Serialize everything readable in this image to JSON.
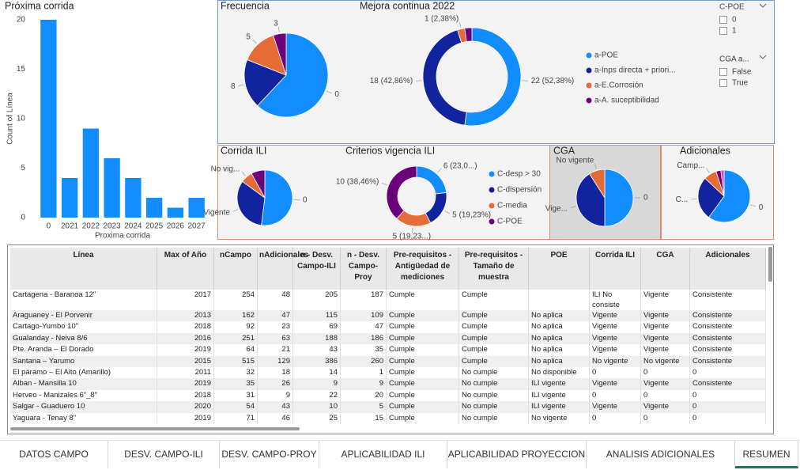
{
  "chart_data": [
    {
      "type": "bar",
      "title": "Próxima corrida",
      "ylabel": "Count of Línea",
      "xlabel": "Proxima corrida",
      "categories": [
        "0",
        "2021",
        "2022",
        "2023",
        "2024",
        "2025",
        "2026",
        "2027"
      ],
      "values": [
        20,
        4,
        9,
        6,
        4,
        2,
        1,
        2
      ],
      "color": "#118dff",
      "ylim": [
        0,
        21
      ],
      "yticks": [
        0,
        5,
        10,
        15,
        20
      ]
    },
    {
      "type": "pie",
      "title": "Frecuencia",
      "categories": [
        "0",
        "8",
        "5",
        "3"
      ],
      "values": [
        62,
        19,
        14,
        5
      ],
      "colors": [
        "#118dff",
        "#12239e",
        "#e66c37",
        "#6b007b"
      ]
    },
    {
      "type": "donut",
      "title": "Mejora continua 2022",
      "categories": [
        "a-POE",
        "a-Inps directa + priori...",
        "a-E.Corrosión",
        "a-A. suceptibilidad"
      ],
      "values": [
        22,
        18,
        1,
        1
      ],
      "value_labels": [
        "22 (52,38%)",
        "18 (42,86%)",
        "1 (2,38%)",
        null
      ],
      "colors": [
        "#118dff",
        "#12239e",
        "#e66c37",
        "#6b007b"
      ]
    },
    {
      "type": "pie",
      "title": "Corrida ILI",
      "categories": [
        "0",
        "Vigente",
        "No vig...",
        null
      ],
      "values": [
        52,
        33,
        7,
        8
      ],
      "colors": [
        "#118dff",
        "#12239e",
        "#e66c37",
        "#6b007b"
      ]
    },
    {
      "type": "donut",
      "title": "Criterios vigencia ILI",
      "categories": [
        "C-desp > 30",
        "C-dispersión",
        "C-media",
        "C-POE"
      ],
      "values": [
        6,
        5,
        5,
        10
      ],
      "value_labels": [
        "6 (23,0...)",
        "5 (19,23%)",
        "5 (19,23...)",
        "10 (38,46%)"
      ],
      "colors": [
        "#118dff",
        "#12239e",
        "#e66c37",
        "#6b007b"
      ]
    },
    {
      "type": "pie",
      "title": "CGA",
      "categories": [
        "0",
        "Vige...",
        "No vigente"
      ],
      "values": [
        50,
        41,
        9
      ],
      "colors": [
        "#118dff",
        "#12239e",
        "#e66c37"
      ]
    },
    {
      "type": "pie",
      "title": "Adicionales",
      "categories": [
        "0",
        "C...",
        "Camp...",
        null,
        null
      ],
      "values": [
        60,
        27,
        8,
        3,
        2
      ],
      "colors": [
        "#118dff",
        "#12239e",
        "#e66c37",
        "#6b007b",
        "#e044a7"
      ]
    }
  ],
  "slicers": [
    {
      "title": "C-POE",
      "options": [
        "0",
        "1"
      ]
    },
    {
      "title": "CGA a...",
      "options": [
        "False",
        "True"
      ]
    }
  ],
  "table": {
    "columns": [
      "Línea",
      "Max of Año",
      "nCampo",
      "nAdicionales",
      "n - Desv. Campo-ILI",
      "n - Desv. Campo-Proy",
      "Pre-requisitos - Antigüedad de mediciones",
      "Pre-requisitos - Tamaño de muestra",
      "POE",
      "Corrida ILI",
      "CGA",
      "Adicionales"
    ],
    "rows": [
      [
        "Cartagena - Baranoa 12\"",
        2017,
        254,
        48,
        205,
        187,
        "Cumple",
        "Cumple",
        null,
        "ILI No consiste",
        "Vigente",
        "Consistente"
      ],
      [
        "Araguaney - El Porvenir",
        2013,
        162,
        47,
        115,
        109,
        "Cumple",
        "Cumple",
        "No aplica",
        "Vigente",
        "Vigente",
        "Consistente"
      ],
      [
        "Cartago-Yumbo 10\"",
        2018,
        92,
        23,
        69,
        47,
        "Cumple",
        "Cumple",
        "No aplica",
        "Vigente",
        "Vigente",
        "Consistente"
      ],
      [
        "Gualanday - Neiva 8/6",
        2016,
        251,
        63,
        188,
        186,
        "Cumple",
        "Cumple",
        "No aplica",
        "Vigente",
        "Vigente",
        "Consistente"
      ],
      [
        "Pte. Aranda – El Dorado",
        2019,
        64,
        21,
        43,
        35,
        "Cumple",
        "Cumple",
        "No aplica",
        "Vigente",
        "Vigente",
        "Consistente"
      ],
      [
        "Santana – Yarumo",
        2015,
        515,
        129,
        386,
        260,
        "Cumple",
        "Cumple",
        "No aplica",
        "No vigente",
        "No vigente",
        "Consistente"
      ],
      [
        "El páramo – El Alto (Amarillo)",
        2011,
        32,
        18,
        14,
        1,
        "Cumple",
        "No cumple",
        "No disponible",
        0,
        0,
        0
      ],
      [
        "Alban - Mansilla 10",
        2019,
        35,
        26,
        9,
        9,
        "Cumple",
        "No cumple",
        "ILI vigente",
        "Vigente",
        "Vigente",
        "Consistente"
      ],
      [
        "Herveo - Manizales 6\"_8\"",
        2018,
        31,
        9,
        22,
        20,
        "Cumple",
        "No cumple",
        "ILI vigente",
        0,
        0,
        0
      ],
      [
        "Salgar - Guaduero 10",
        2020,
        54,
        43,
        10,
        5,
        "Cumple",
        "No cumple",
        "ILI vigente",
        "Vigente",
        "Vigente",
        0
      ],
      [
        "Yaguara - Tenay 8\"",
        2019,
        71,
        46,
        25,
        15,
        "Cumple",
        "No cumple",
        "No vigente",
        0,
        0,
        0
      ]
    ]
  },
  "tabs": [
    "DATOS CAMPO",
    "DESV. CAMPO-ILI",
    "DESV. CAMPO-PROY",
    "APLICABILIDAD ILI",
    "APLICABILIDAD PROYECCION",
    "ANALISIS ADICIONALES",
    "RESUMEN"
  ],
  "selected_tab": 6
}
